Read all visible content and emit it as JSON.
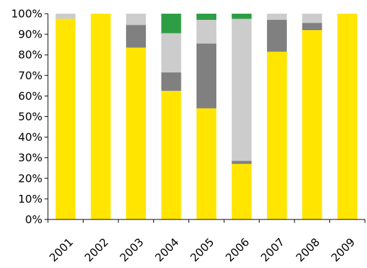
{
  "chart_data": {
    "type": "bar",
    "stacked": true,
    "categories": [
      "2001",
      "2002",
      "2003",
      "2004",
      "2005",
      "2006",
      "2007",
      "2008",
      "2009"
    ],
    "series": [
      {
        "color": "#FFE500",
        "values": [
          97.5,
          100,
          83.5,
          62.5,
          54,
          27,
          81.5,
          92,
          100
        ]
      },
      {
        "color": "#808080",
        "values": [
          0,
          0,
          11,
          9,
          31.5,
          1.5,
          15.5,
          3.5,
          0
        ]
      },
      {
        "color": "#CCCCCC",
        "values": [
          2.5,
          0,
          5.5,
          19,
          11.5,
          69,
          3,
          4.5,
          0
        ]
      },
      {
        "color": "#2E9E45",
        "values": [
          0,
          0,
          0,
          9.5,
          3,
          2.5,
          0,
          0,
          0
        ]
      }
    ],
    "ylim": [
      0,
      100
    ],
    "yticks": [
      "0%",
      "10%",
      "20%",
      "30%",
      "40%",
      "50%",
      "60%",
      "70%",
      "80%",
      "90%",
      "100%"
    ],
    "grid": false,
    "legend": "none",
    "title": "",
    "xlabel": "",
    "ylabel": ""
  }
}
